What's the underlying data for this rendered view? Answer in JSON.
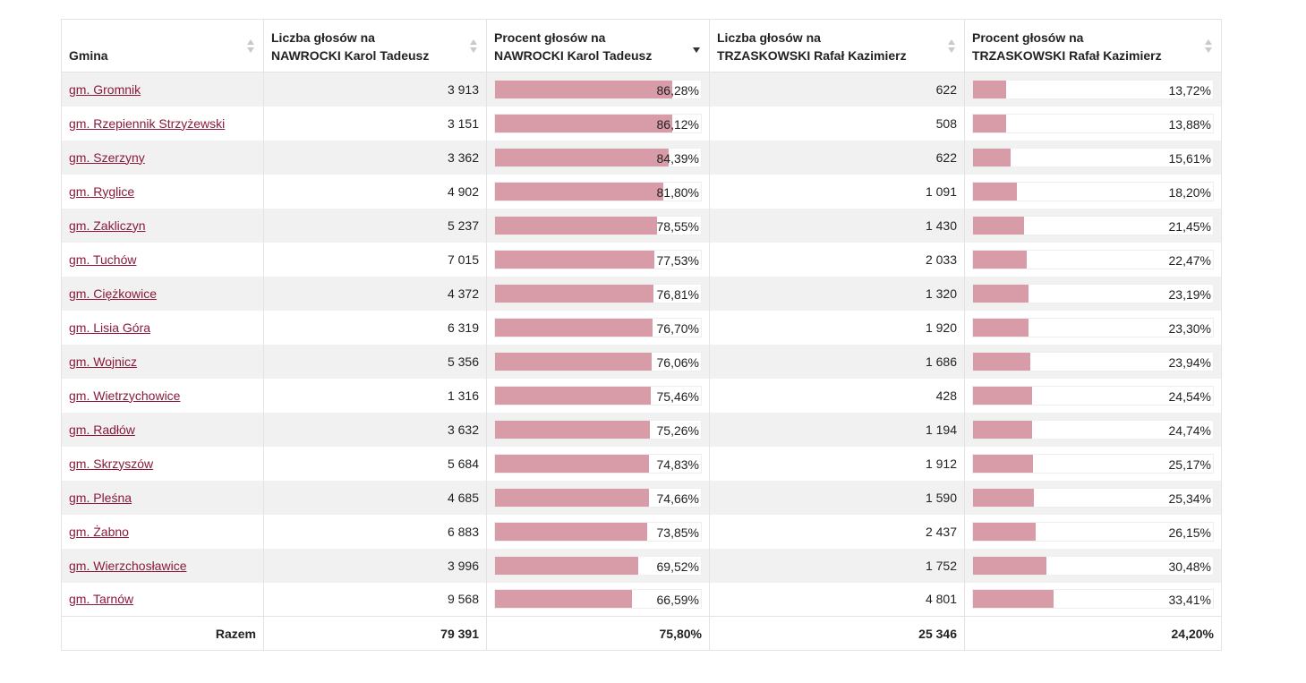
{
  "headers": {
    "gmina": "Gmina",
    "votes_a": [
      "Liczba głosów na",
      "NAWROCKI Karol Tadeusz"
    ],
    "pct_a": [
      "Procent głosów na",
      "NAWROCKI Karol Tadeusz"
    ],
    "votes_b": [
      "Liczba głosów na",
      "TRZASKOWSKI Rafał Kazimierz"
    ],
    "pct_b": [
      "Procent głosów na",
      "TRZASKOWSKI Rafał Kazimierz"
    ]
  },
  "sorted_column": "pct_a",
  "sort_direction": "descending",
  "rows": [
    {
      "gmina": "gm. Gromnik",
      "votes_a": "3 913",
      "pct_a": "86,28%",
      "pct_a_val": 86.28,
      "votes_b": "622",
      "pct_b": "13,72%",
      "pct_b_val": 13.72
    },
    {
      "gmina": "gm. Rzepiennik Strzyżewski",
      "votes_a": "3 151",
      "pct_a": "86,12%",
      "pct_a_val": 86.12,
      "votes_b": "508",
      "pct_b": "13,88%",
      "pct_b_val": 13.88
    },
    {
      "gmina": "gm. Szerzyny",
      "votes_a": "3 362",
      "pct_a": "84,39%",
      "pct_a_val": 84.39,
      "votes_b": "622",
      "pct_b": "15,61%",
      "pct_b_val": 15.61
    },
    {
      "gmina": "gm. Ryglice",
      "votes_a": "4 902",
      "pct_a": "81,80%",
      "pct_a_val": 81.8,
      "votes_b": "1 091",
      "pct_b": "18,20%",
      "pct_b_val": 18.2
    },
    {
      "gmina": "gm. Zakliczyn",
      "votes_a": "5 237",
      "pct_a": "78,55%",
      "pct_a_val": 78.55,
      "votes_b": "1 430",
      "pct_b": "21,45%",
      "pct_b_val": 21.45
    },
    {
      "gmina": "gm. Tuchów",
      "votes_a": "7 015",
      "pct_a": "77,53%",
      "pct_a_val": 77.53,
      "votes_b": "2 033",
      "pct_b": "22,47%",
      "pct_b_val": 22.47
    },
    {
      "gmina": "gm. Ciężkowice",
      "votes_a": "4 372",
      "pct_a": "76,81%",
      "pct_a_val": 76.81,
      "votes_b": "1 320",
      "pct_b": "23,19%",
      "pct_b_val": 23.19
    },
    {
      "gmina": "gm. Lisia Góra",
      "votes_a": "6 319",
      "pct_a": "76,70%",
      "pct_a_val": 76.7,
      "votes_b": "1 920",
      "pct_b": "23,30%",
      "pct_b_val": 23.3
    },
    {
      "gmina": "gm. Wojnicz",
      "votes_a": "5 356",
      "pct_a": "76,06%",
      "pct_a_val": 76.06,
      "votes_b": "1 686",
      "pct_b": "23,94%",
      "pct_b_val": 23.94
    },
    {
      "gmina": "gm. Wietrzychowice",
      "votes_a": "1 316",
      "pct_a": "75,46%",
      "pct_a_val": 75.46,
      "votes_b": "428",
      "pct_b": "24,54%",
      "pct_b_val": 24.54
    },
    {
      "gmina": "gm. Radłów",
      "votes_a": "3 632",
      "pct_a": "75,26%",
      "pct_a_val": 75.26,
      "votes_b": "1 194",
      "pct_b": "24,74%",
      "pct_b_val": 24.74
    },
    {
      "gmina": "gm. Skrzyszów",
      "votes_a": "5 684",
      "pct_a": "74,83%",
      "pct_a_val": 74.83,
      "votes_b": "1 912",
      "pct_b": "25,17%",
      "pct_b_val": 25.17
    },
    {
      "gmina": "gm. Pleśna",
      "votes_a": "4 685",
      "pct_a": "74,66%",
      "pct_a_val": 74.66,
      "votes_b": "1 590",
      "pct_b": "25,34%",
      "pct_b_val": 25.34
    },
    {
      "gmina": "gm. Żabno",
      "votes_a": "6 883",
      "pct_a": "73,85%",
      "pct_a_val": 73.85,
      "votes_b": "2 437",
      "pct_b": "26,15%",
      "pct_b_val": 26.15
    },
    {
      "gmina": "gm. Wierzchosławice",
      "votes_a": "3 996",
      "pct_a": "69,52%",
      "pct_a_val": 69.52,
      "votes_b": "1 752",
      "pct_b": "30,48%",
      "pct_b_val": 30.48
    },
    {
      "gmina": "gm. Tarnów",
      "votes_a": "9 568",
      "pct_a": "66,59%",
      "pct_a_val": 66.59,
      "votes_b": "4 801",
      "pct_b": "33,41%",
      "pct_b_val": 33.41
    }
  ],
  "total": {
    "label": "Razem",
    "votes_a": "79 391",
    "pct_a": "75,80%",
    "votes_b": "25 346",
    "pct_b": "24,20%"
  },
  "colors": {
    "bar_fill": "#d89ba8",
    "link": "#8b1a3a",
    "row_alt": "#f1f1f1"
  }
}
